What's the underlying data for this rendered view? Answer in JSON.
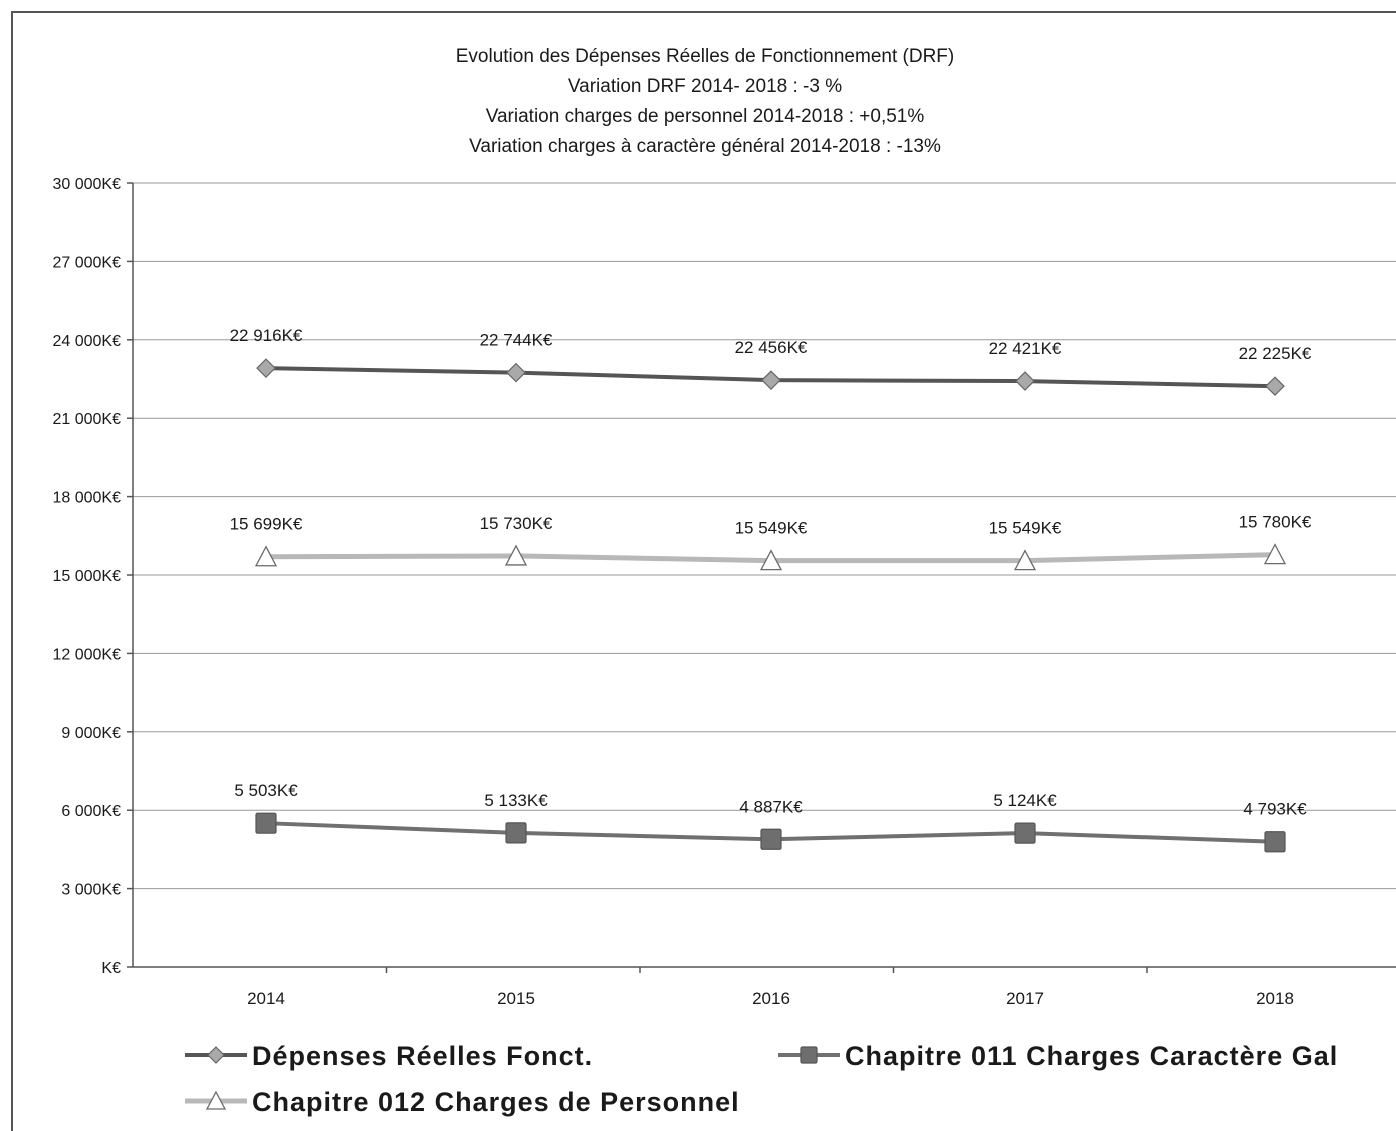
{
  "chart_data": {
    "type": "line",
    "title": [
      "Evolution des Dépenses Réelles de Fonctionnement (DRF)",
      "Variation DRF 2014- 2018 : -3 %",
      "Variation charges de personnel 2014-2018 : +0,51%",
      "Variation charges à caractère général 2014-2018 : -13%"
    ],
    "categories": [
      "2014",
      "2015",
      "2016",
      "2017",
      "2018"
    ],
    "ylim": [
      0,
      30000
    ],
    "yticks": [
      0,
      3000,
      6000,
      9000,
      12000,
      15000,
      18000,
      21000,
      24000,
      27000,
      30000
    ],
    "ytick_labels": [
      "K€",
      "3 000K€",
      "6 000K€",
      "9 000K€",
      "12 000K€",
      "15 000K€",
      "18 000K€",
      "21 000K€",
      "24 000K€",
      "27 000K€",
      "30 000K€"
    ],
    "grid": true,
    "legend_position": "bottom",
    "series": [
      {
        "name": "Dépenses Réelles Fonct.",
        "marker": "diamond",
        "color": "#555555",
        "values": [
          22916,
          22744,
          22456,
          22421,
          22225
        ],
        "labels": [
          "22 916K€",
          "22 744K€",
          "22 456K€",
          "22 421K€",
          "22 225K€"
        ]
      },
      {
        "name": "Chapitre 012 Charges de Personnel",
        "marker": "triangle",
        "color": "#b8b8b8",
        "values": [
          15699,
          15730,
          15549,
          15549,
          15780
        ],
        "labels": [
          "15 699K€",
          "15 730K€",
          "15 549K€",
          "15 549K€",
          "15 780K€"
        ]
      },
      {
        "name": "Chapitre 011 Charges Caractère Gal",
        "marker": "square",
        "color": "#707070",
        "values": [
          5503,
          5133,
          4887,
          5124,
          4793
        ],
        "labels": [
          "5 503K€",
          "5 133K€",
          "4 887K€",
          "5 124K€",
          "4 793K€"
        ]
      }
    ]
  }
}
